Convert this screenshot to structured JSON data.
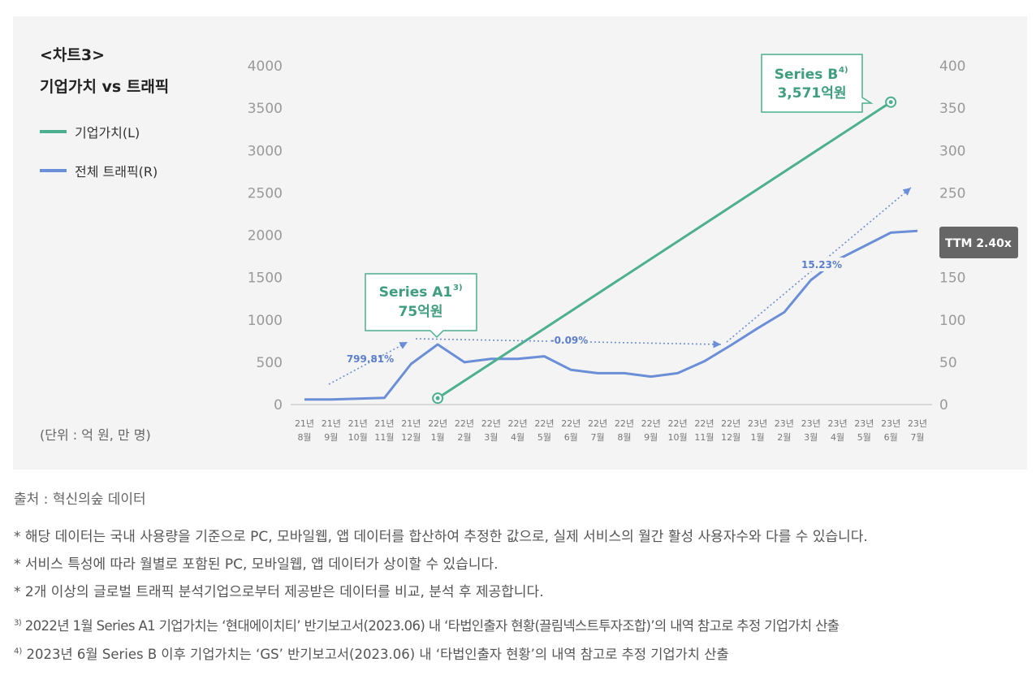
{
  "title": {
    "line1": "<차트3>",
    "line2": "기업가치 vs 트래픽"
  },
  "legend": [
    {
      "label": "기업가치(L)",
      "color": "#4caf8f"
    },
    {
      "label": "전체 트래픽(R)",
      "color": "#6a8fd8"
    }
  ],
  "unit_note": "(단위 : 억 원, 만 명)",
  "chart_data": {
    "type": "line",
    "categories": [
      [
        "21년",
        "8월"
      ],
      [
        "21년",
        "9월"
      ],
      [
        "21년",
        "10월"
      ],
      [
        "21년",
        "11월"
      ],
      [
        "21년",
        "12월"
      ],
      [
        "22년",
        "1월"
      ],
      [
        "22년",
        "2월"
      ],
      [
        "22년",
        "3월"
      ],
      [
        "22년",
        "4월"
      ],
      [
        "22년",
        "5월"
      ],
      [
        "22년",
        "6월"
      ],
      [
        "22년",
        "7월"
      ],
      [
        "22년",
        "8월"
      ],
      [
        "22년",
        "9월"
      ],
      [
        "22년",
        "10월"
      ],
      [
        "22년",
        "11월"
      ],
      [
        "22년",
        "12월"
      ],
      [
        "23년",
        "1월"
      ],
      [
        "23년",
        "2월"
      ],
      [
        "23년",
        "3월"
      ],
      [
        "23년",
        "4월"
      ],
      [
        "23년",
        "5월"
      ],
      [
        "23년",
        "6월"
      ],
      [
        "23년",
        "7월"
      ]
    ],
    "left_axis": {
      "ticks": [
        "0",
        "500",
        "1000",
        "1500",
        "2000",
        "2500",
        "3000",
        "3500",
        "4000"
      ],
      "ylim": [
        0,
        4000
      ]
    },
    "right_axis": {
      "ticks": [
        "0",
        "50",
        "100",
        "150",
        "200",
        "250",
        "300",
        "350",
        "400"
      ],
      "ylim": [
        0,
        400
      ]
    },
    "series": [
      {
        "name": "기업가치(L)",
        "axis": "left",
        "color": "#4caf8f",
        "points": [
          [
            5,
            75
          ],
          [
            22,
            3571
          ]
        ]
      },
      {
        "name": "전체 트래픽(R)",
        "axis": "right",
        "color": "#6a8fd8",
        "values": [
          6,
          6,
          7,
          8,
          48,
          71,
          50,
          54,
          54,
          57,
          41,
          37,
          37,
          33,
          37,
          51,
          70,
          90,
          109,
          147,
          171,
          187,
          203,
          205
        ]
      }
    ],
    "annotations": {
      "series_a": {
        "title": "Series A1",
        "sup": "3)",
        "value": "75억원"
      },
      "series_b": {
        "title": "Series B",
        "sup": "4)",
        "value": "3,571억원"
      },
      "growth_1": {
        "label": "799.81%"
      },
      "growth_2": {
        "label": "-0.09%"
      },
      "growth_3": {
        "label": "15.23%"
      },
      "ttm": {
        "label": "TTM 2.40x"
      }
    }
  },
  "footer": {
    "source": "출처 : 혁신의숲 데이터",
    "notes": [
      "* 해당 데이터는 국내 사용량을 기준으로 PC, 모바일웹, 앱 데이터를 합산하여 추정한 값으로, 실제 서비스의 월간 활성 사용자수와 다를 수 있습니다.",
      "* 서비스 특성에 따라 월별로 포함된 PC, 모바일웹, 앱 데이터가 상이할 수 있습니다.",
      "* 2개 이상의 글로벌 트래픽 분석기업으로부터 제공받은 데이터를 비교, 분석 후 제공합니다."
    ],
    "refs": [
      {
        "sup": "3)",
        "text": "2022년 1월 Series A1 기업가치는 ‘현대에이치티’ 반기보고서(2023.06) 내 ‘타법인출자 현황(끌림넥스트투자조합)’의 내역 참고로 추정 기업가치 산출"
      },
      {
        "sup": "4)",
        "text": "2023년 6월 Series B 이후 기업가치는 ‘GS’ 반기보고서(2023.06) 내 ‘타법인출자 현황’의 내역 참고로 추정 기업가치 산출"
      }
    ]
  }
}
